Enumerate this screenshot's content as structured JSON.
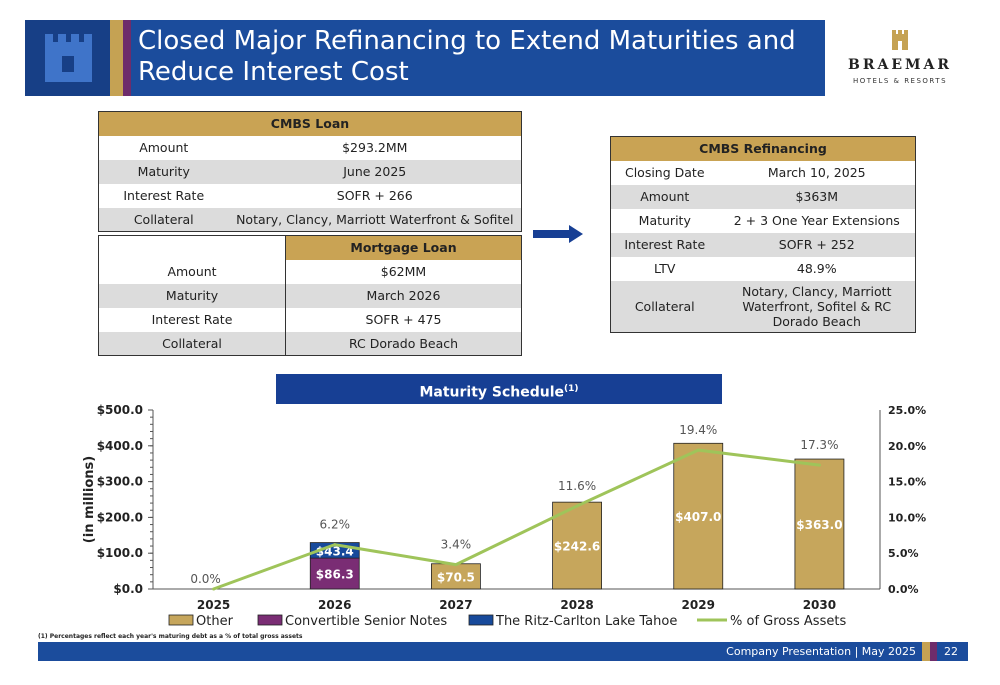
{
  "header": {
    "title": "Closed Major Refinancing to Extend Maturities and Reduce Interest Cost",
    "brand_name": "BRAEMAR",
    "brand_sub": "HOTELS & RESORTS"
  },
  "cmbs_loan": {
    "title": "CMBS Loan",
    "rows": [
      {
        "label": "Amount",
        "value": "$293.2MM"
      },
      {
        "label": "Maturity",
        "value": "June 2025"
      },
      {
        "label": "Interest Rate",
        "value": "SOFR + 266"
      },
      {
        "label": "Collateral",
        "value": "Notary, Clancy, Marriott Waterfront & Sofitel"
      }
    ]
  },
  "mortgage_loan": {
    "title": "Mortgage Loan",
    "rows": [
      {
        "label": "Amount",
        "value": "$62MM"
      },
      {
        "label": "Maturity",
        "value": "March 2026"
      },
      {
        "label": "Interest Rate",
        "value": "SOFR + 475"
      },
      {
        "label": "Collateral",
        "value": "RC Dorado Beach"
      }
    ]
  },
  "cmbs_refinancing": {
    "title": "CMBS Refinancing",
    "rows": [
      {
        "label": "Closing Date",
        "value": "March 10, 2025"
      },
      {
        "label": "Amount",
        "value": "$363M"
      },
      {
        "label": "Maturity",
        "value": "2 + 3 One Year Extensions"
      },
      {
        "label": "Interest Rate",
        "value": "SOFR + 252"
      },
      {
        "label": "LTV",
        "value": "48.9%"
      },
      {
        "label": "Collateral",
        "value": "Notary, Clancy, Marriott Waterfront, Sofitel & RC Dorado Beach"
      }
    ]
  },
  "chart_banner": {
    "title": "Maturity Schedule",
    "sup": "(1)"
  },
  "chart_data": {
    "type": "bar",
    "categories": [
      "2025",
      "2026",
      "2027",
      "2028",
      "2029",
      "2030"
    ],
    "series": [
      {
        "name": "Other",
        "values": [
          0,
          0,
          70.5,
          242.6,
          407.0,
          363.0
        ],
        "color": "#c6a65c"
      },
      {
        "name": "Convertible Senior Notes",
        "values": [
          0,
          86.3,
          0,
          0,
          0,
          0
        ],
        "color": "#7a2d74"
      },
      {
        "name": "The Ritz-Carlton Lake Tahoe",
        "values": [
          0,
          43.4,
          0,
          0,
          0,
          0
        ],
        "color": "#174a9b"
      }
    ],
    "line_series": {
      "name": "% of Gross Assets",
      "values": [
        0.0,
        6.2,
        3.4,
        11.6,
        19.4,
        17.3
      ],
      "color": "#9fc45a"
    },
    "bar_labels": [
      "",
      "",
      "$70.5",
      "$242.6",
      "$407.0",
      "$363.0"
    ],
    "stack_labels": {
      "Convertible Senior Notes": [
        "",
        "$86.3",
        "",
        "",
        "",
        ""
      ],
      "The Ritz-Carlton Lake Tahoe": [
        "",
        "$43.4",
        "",
        "",
        "",
        ""
      ]
    },
    "line_labels": [
      "0.0%",
      "6.2%",
      "3.4%",
      "11.6%",
      "19.4%",
      "17.3%"
    ],
    "ylabel": "(in millions)",
    "ylim": [
      0,
      500
    ],
    "y_ticks": [
      "$0.0",
      "$100.0",
      "$200.0",
      "$300.0",
      "$400.0",
      "$500.0"
    ],
    "y2lim": [
      0,
      25
    ],
    "y2_ticks": [
      "0.0%",
      "5.0%",
      "10.0%",
      "15.0%",
      "20.0%",
      "25.0%"
    ],
    "legend_position": "bottom"
  },
  "footnote": "(1) Percentages reflect each year's maturing debt as a % of total gross assets",
  "footer": {
    "text": "Company Presentation | May 2025",
    "page": "22"
  }
}
